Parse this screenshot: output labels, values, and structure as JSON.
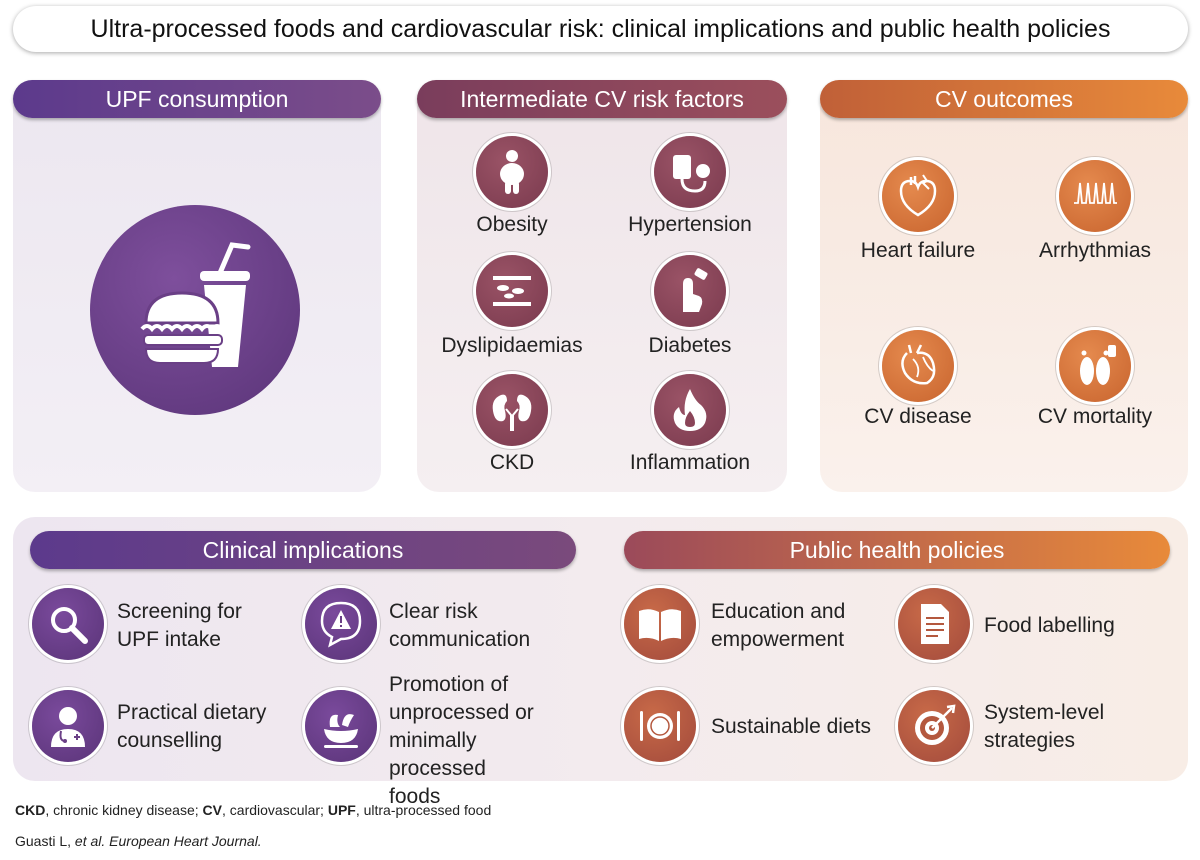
{
  "title": "Ultra-processed foods and cardiovascular risk: clinical implications and public health policies",
  "panels": {
    "upf": {
      "label": "UPF consumption"
    },
    "risk": {
      "label": "Intermediate CV risk factors",
      "items": [
        "Obesity",
        "Hypertension",
        "Dyslipidaemias",
        "Diabetes",
        "CKD",
        "Inflammation"
      ]
    },
    "outcomes": {
      "label": "CV outcomes",
      "items": [
        "Heart failure",
        "Arrhythmias",
        "CV disease",
        "CV mortality"
      ]
    },
    "clinical": {
      "label": "Clinical implications",
      "items": [
        [
          "Screening for",
          "UPF intake"
        ],
        [
          "Clear risk",
          "communication"
        ],
        [
          "Practical dietary",
          "counselling"
        ],
        [
          "Promotion of",
          "unprocessed or",
          "minimally processed",
          "foods"
        ]
      ]
    },
    "public": {
      "label": "Public health policies",
      "items": [
        [
          "Education and",
          "empowerment"
        ],
        [
          "Food labelling"
        ],
        [
          "Sustainable diets"
        ],
        [
          "System-level",
          "strategies"
        ]
      ]
    }
  },
  "footnote": {
    "abbr": [
      {
        "term": "CKD",
        "def": ", chronic kidney disease; "
      },
      {
        "term": "CV",
        "def": ", cardiovascular; "
      },
      {
        "term": "UPF",
        "def": ", ultra-processed food"
      }
    ],
    "citation_authors": "Guasti L, ",
    "citation_etal": "et al. European Heart Journal."
  },
  "colors": {
    "upf_purple": "#5c3a8c",
    "risk_maroon": "#7a3d5c",
    "outcome_orange": "#e07a3a",
    "public_brick": "#a24a3c"
  },
  "icons": {
    "upf": "fast-food-icon",
    "risk": [
      "obese-person-icon",
      "blood-pressure-cuff-icon",
      "artery-plaque-icon",
      "finger-prick-icon",
      "kidneys-icon",
      "flame-icon"
    ],
    "outcomes": [
      "heart-icon",
      "ecg-spikes-icon",
      "heart-vessels-icon",
      "feet-toe-tag-icon"
    ],
    "clinical": [
      "magnifier-icon",
      "warning-bubble-icon",
      "doctor-icon",
      "salad-bowl-icon"
    ],
    "public": [
      "open-book-icon",
      "label-document-icon",
      "plate-cutlery-icon",
      "target-icon"
    ]
  }
}
